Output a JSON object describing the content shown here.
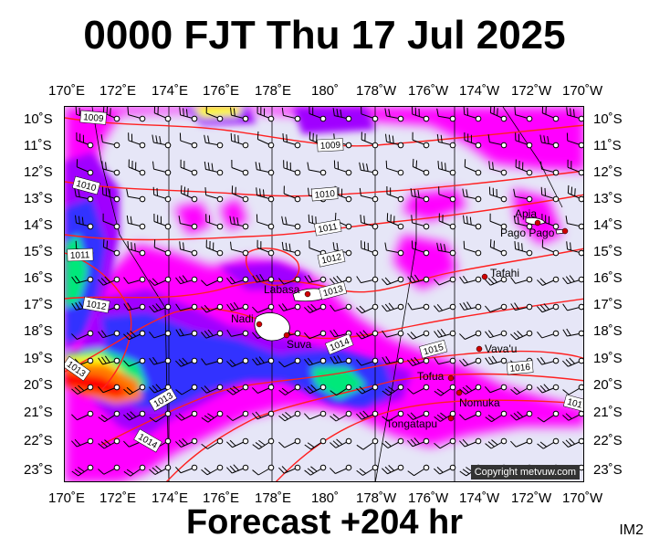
{
  "header": {
    "title": "0000 FJT Thu 17 Jul 2025"
  },
  "footer": {
    "forecast": "Forecast +204 hr",
    "tag": "IM2"
  },
  "axes": {
    "lon_labels": [
      "170˚E",
      "172˚E",
      "174˚E",
      "176˚E",
      "178˚E",
      "180˚",
      "178˚W",
      "176˚W",
      "174˚W",
      "172˚W",
      "170˚W"
    ],
    "lat_labels": [
      "10˚S",
      "11˚S",
      "12˚S",
      "13˚S",
      "14˚S",
      "15˚S",
      "16˚S",
      "17˚S",
      "18˚S",
      "19˚S",
      "20˚S",
      "21˚S",
      "22˚S",
      "23˚S"
    ]
  },
  "places": [
    {
      "name": "Apia"
    },
    {
      "name": "Pago Pago"
    },
    {
      "name": "Tafahi"
    },
    {
      "name": "Labasa"
    },
    {
      "name": "Nadi"
    },
    {
      "name": "Suva"
    },
    {
      "name": "Vava'u"
    },
    {
      "name": "Tofua"
    },
    {
      "name": "Nomuka"
    },
    {
      "name": "Tongatapu"
    }
  ],
  "isobars": [
    "1009",
    "1010",
    "1010",
    "1011",
    "1011",
    "1012",
    "1012",
    "1013",
    "1013",
    "1013",
    "1014",
    "1014",
    "1015",
    "1016",
    "101"
  ],
  "copyright": "Copyright metvuw.com",
  "colors": {
    "background": "#e6e6f7",
    "magenta": "#ff00ff",
    "purple": "#a000ff",
    "blue": "#3030ff",
    "green": "#00e87a",
    "yellow": "#ffff00",
    "orange": "#ff7a00",
    "red": "#ff0000",
    "isobar": "#ff2020"
  }
}
